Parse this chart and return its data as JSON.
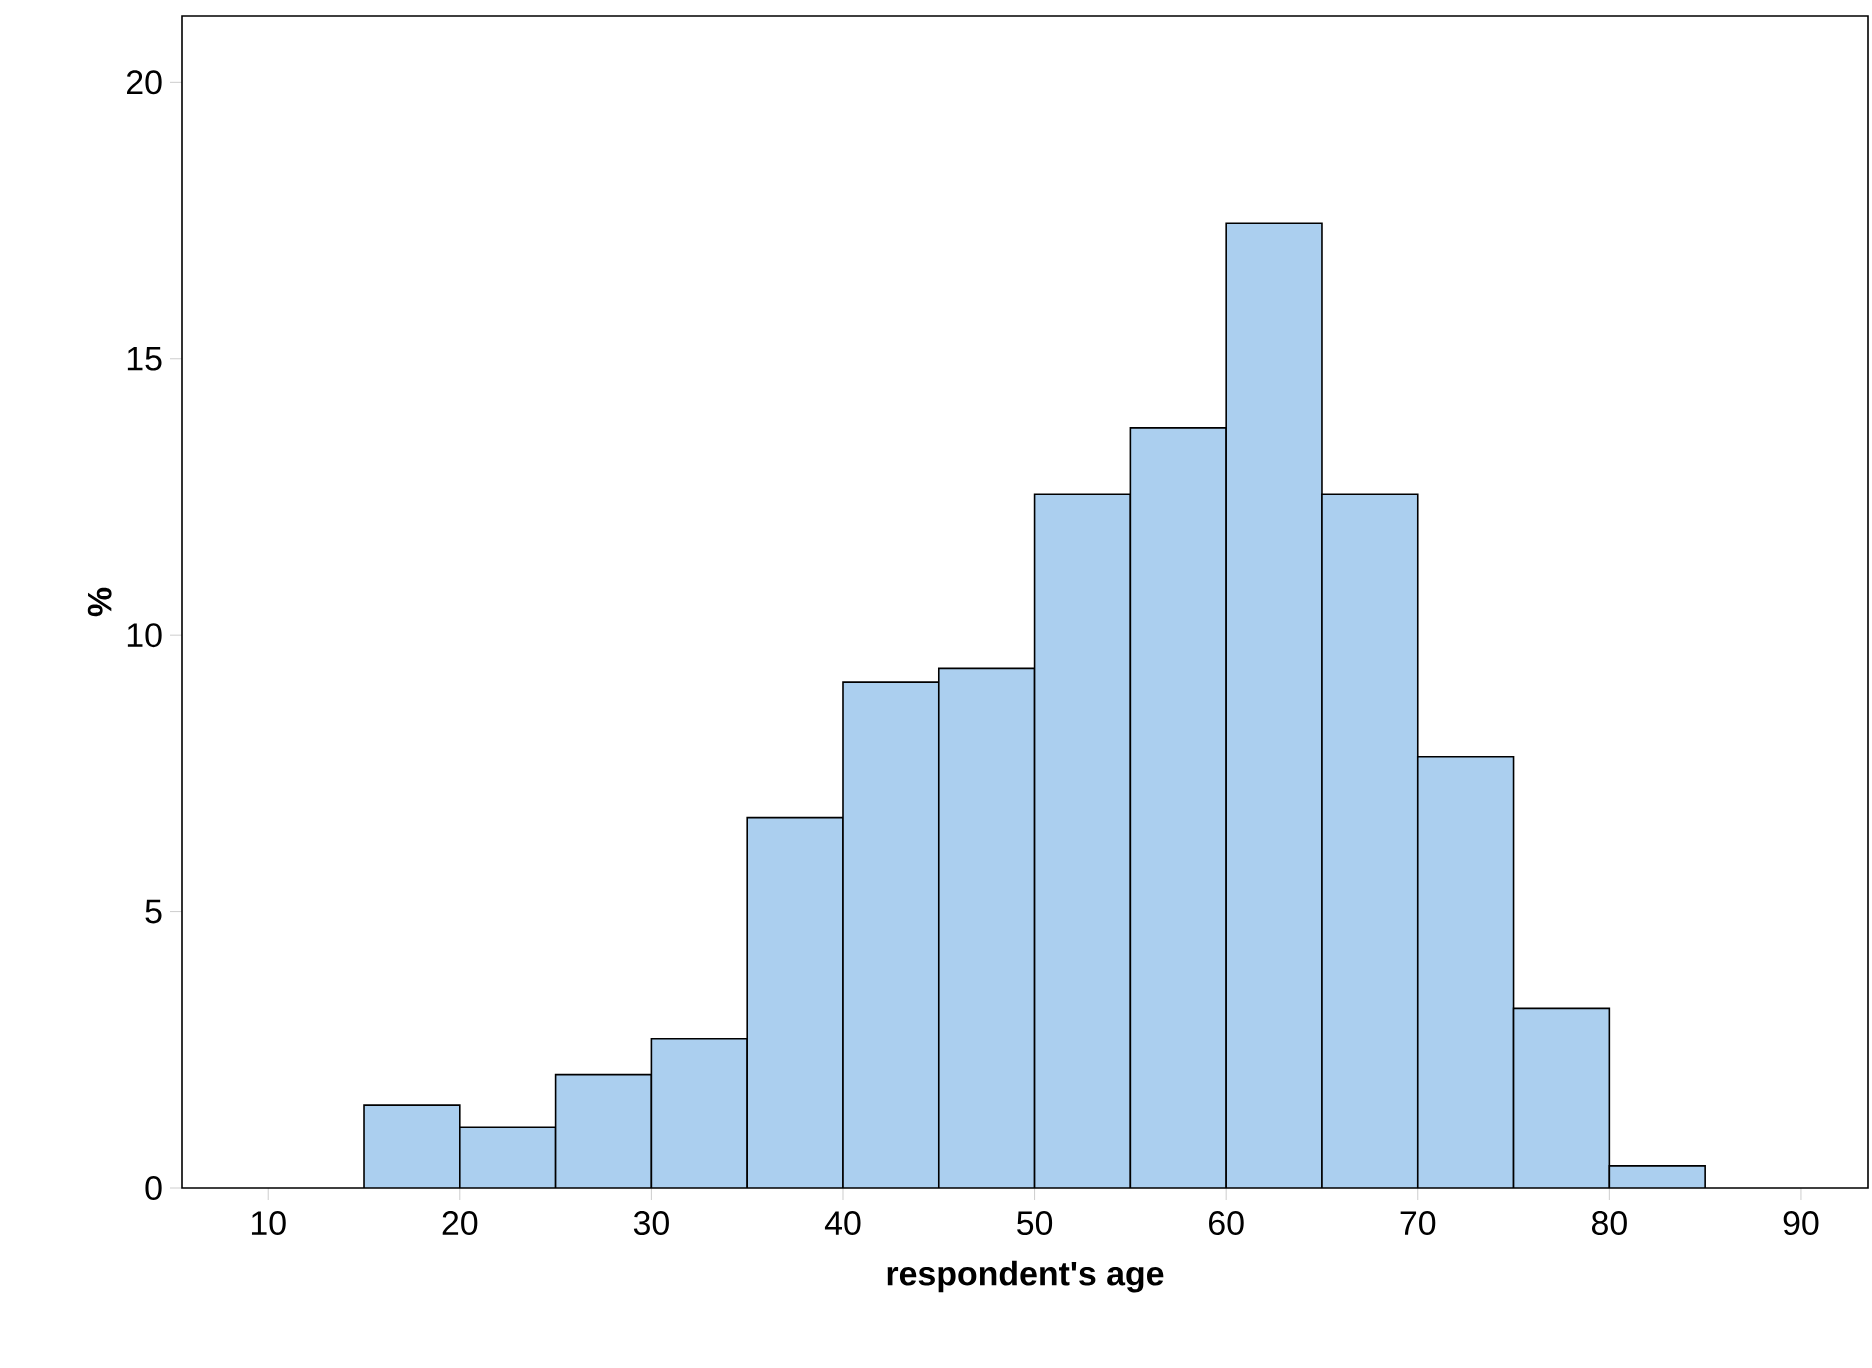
{
  "chart_data": {
    "type": "histogram",
    "xlabel": "respondent's age",
    "ylabel": "%",
    "bins": [
      15,
      20,
      25,
      30,
      35,
      40,
      45,
      50,
      55,
      60,
      65,
      70,
      75,
      80,
      85
    ],
    "values": [
      1.5,
      1.1,
      2.05,
      2.7,
      6.7,
      9.15,
      9.4,
      12.55,
      13.75,
      17.45,
      12.55,
      7.8,
      3.25,
      0.4
    ],
    "color": "#abcfef",
    "xlim": [
      5.5,
      93.5
    ],
    "ylim": [
      0,
      21.2
    ],
    "xticks": [
      10,
      20,
      30,
      40,
      50,
      60,
      70,
      80,
      90
    ],
    "yticks": [
      0,
      5,
      10,
      15,
      20
    ],
    "grid": false
  }
}
